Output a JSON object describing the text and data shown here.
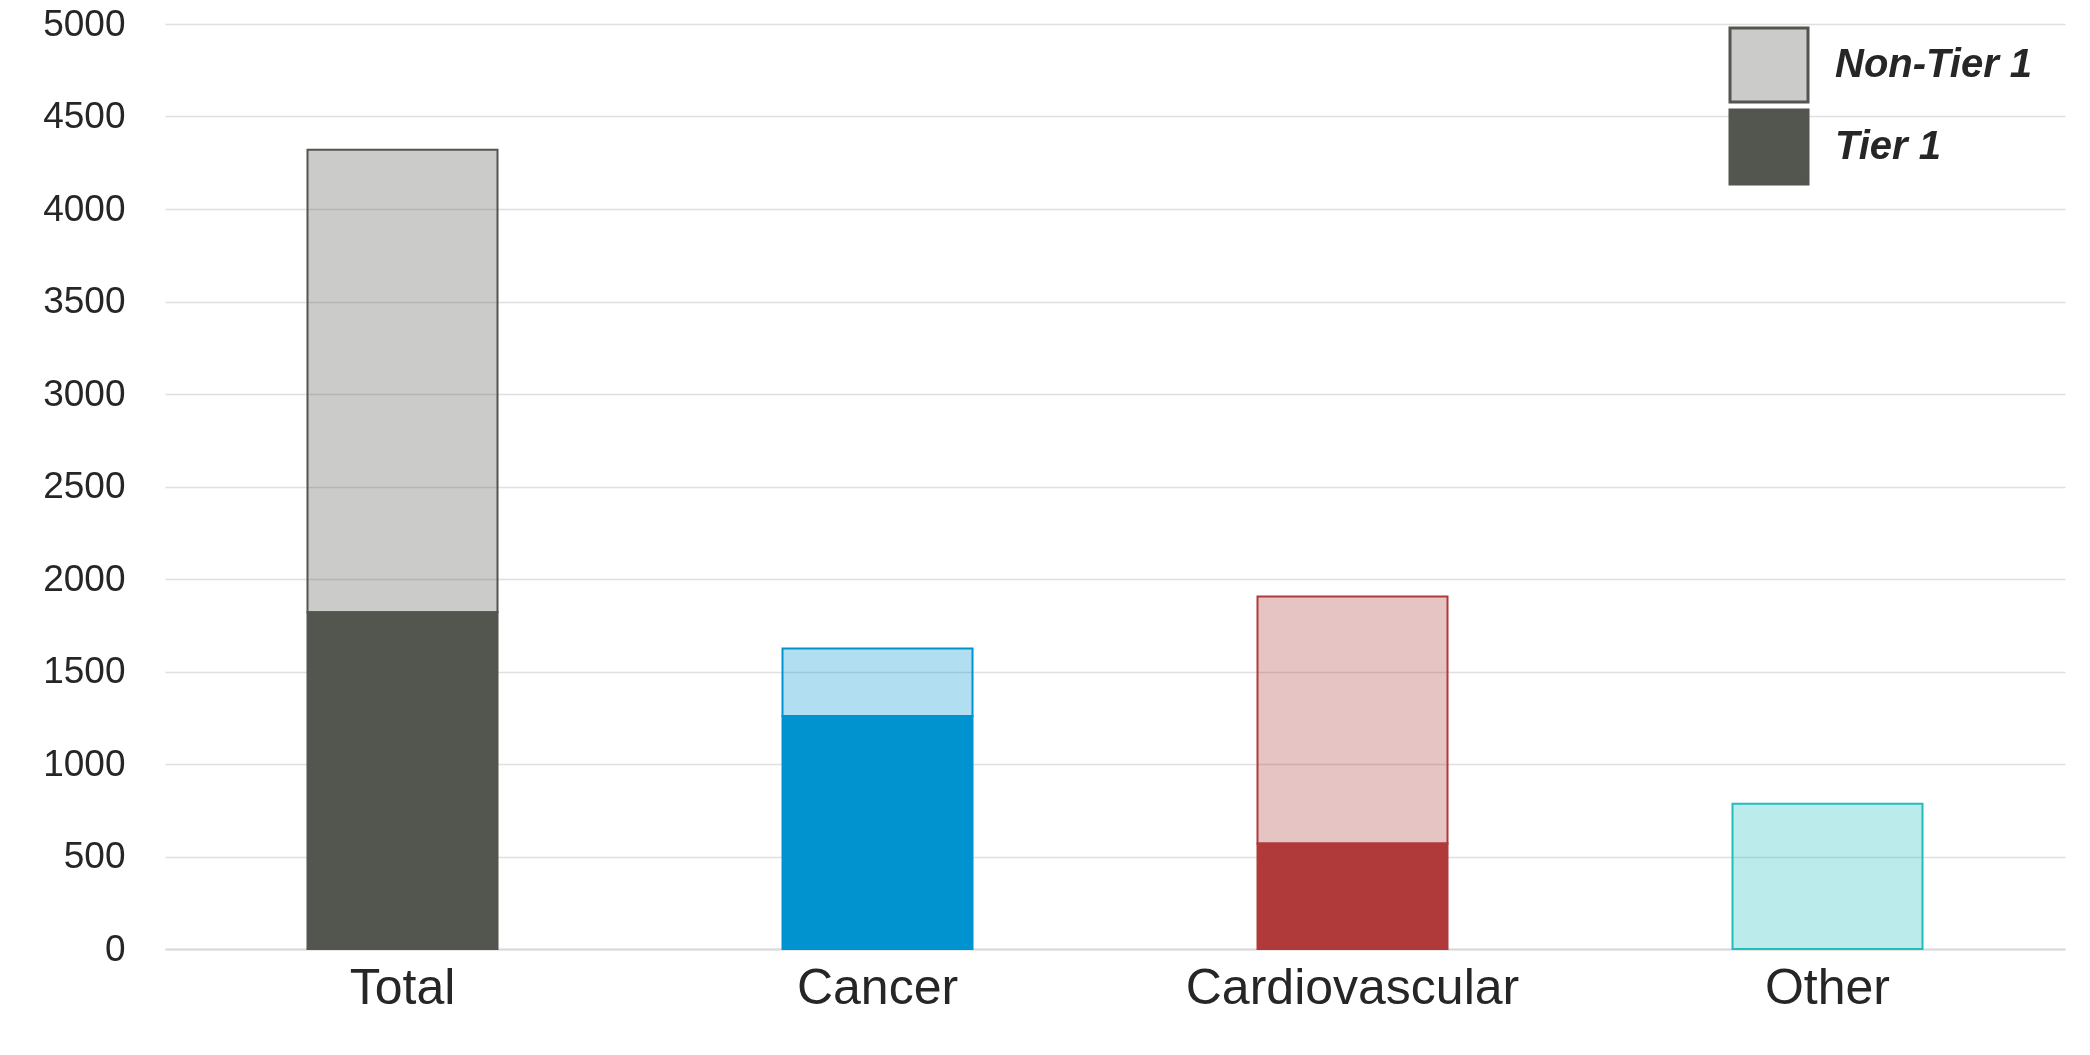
{
  "chart_data": {
    "type": "bar",
    "stacked": true,
    "categories": [
      "Total",
      "Cancer",
      "Cardiovascular",
      "Other"
    ],
    "series": [
      {
        "name": "Tier 1",
        "color": "#53554f",
        "colors": [
          "#53554f",
          "#0093d0",
          "#b03a3a",
          "#22bcbc"
        ],
        "values": [
          1820,
          1260,
          570,
          0
        ]
      },
      {
        "name": "Non-Tier 1",
        "color": "#53554f",
        "colors": [
          "#53554f",
          "#0093d0",
          "#b03a3a",
          "#22bcbc"
        ],
        "values": [
          2500,
          365,
          1335,
          785
        ]
      }
    ],
    "ylim": [
      0,
      5000
    ],
    "yticks": [
      0,
      500,
      1000,
      1500,
      2000,
      2500,
      3000,
      3500,
      4000,
      4500,
      5000
    ],
    "grid": "y",
    "legend": "top right"
  }
}
